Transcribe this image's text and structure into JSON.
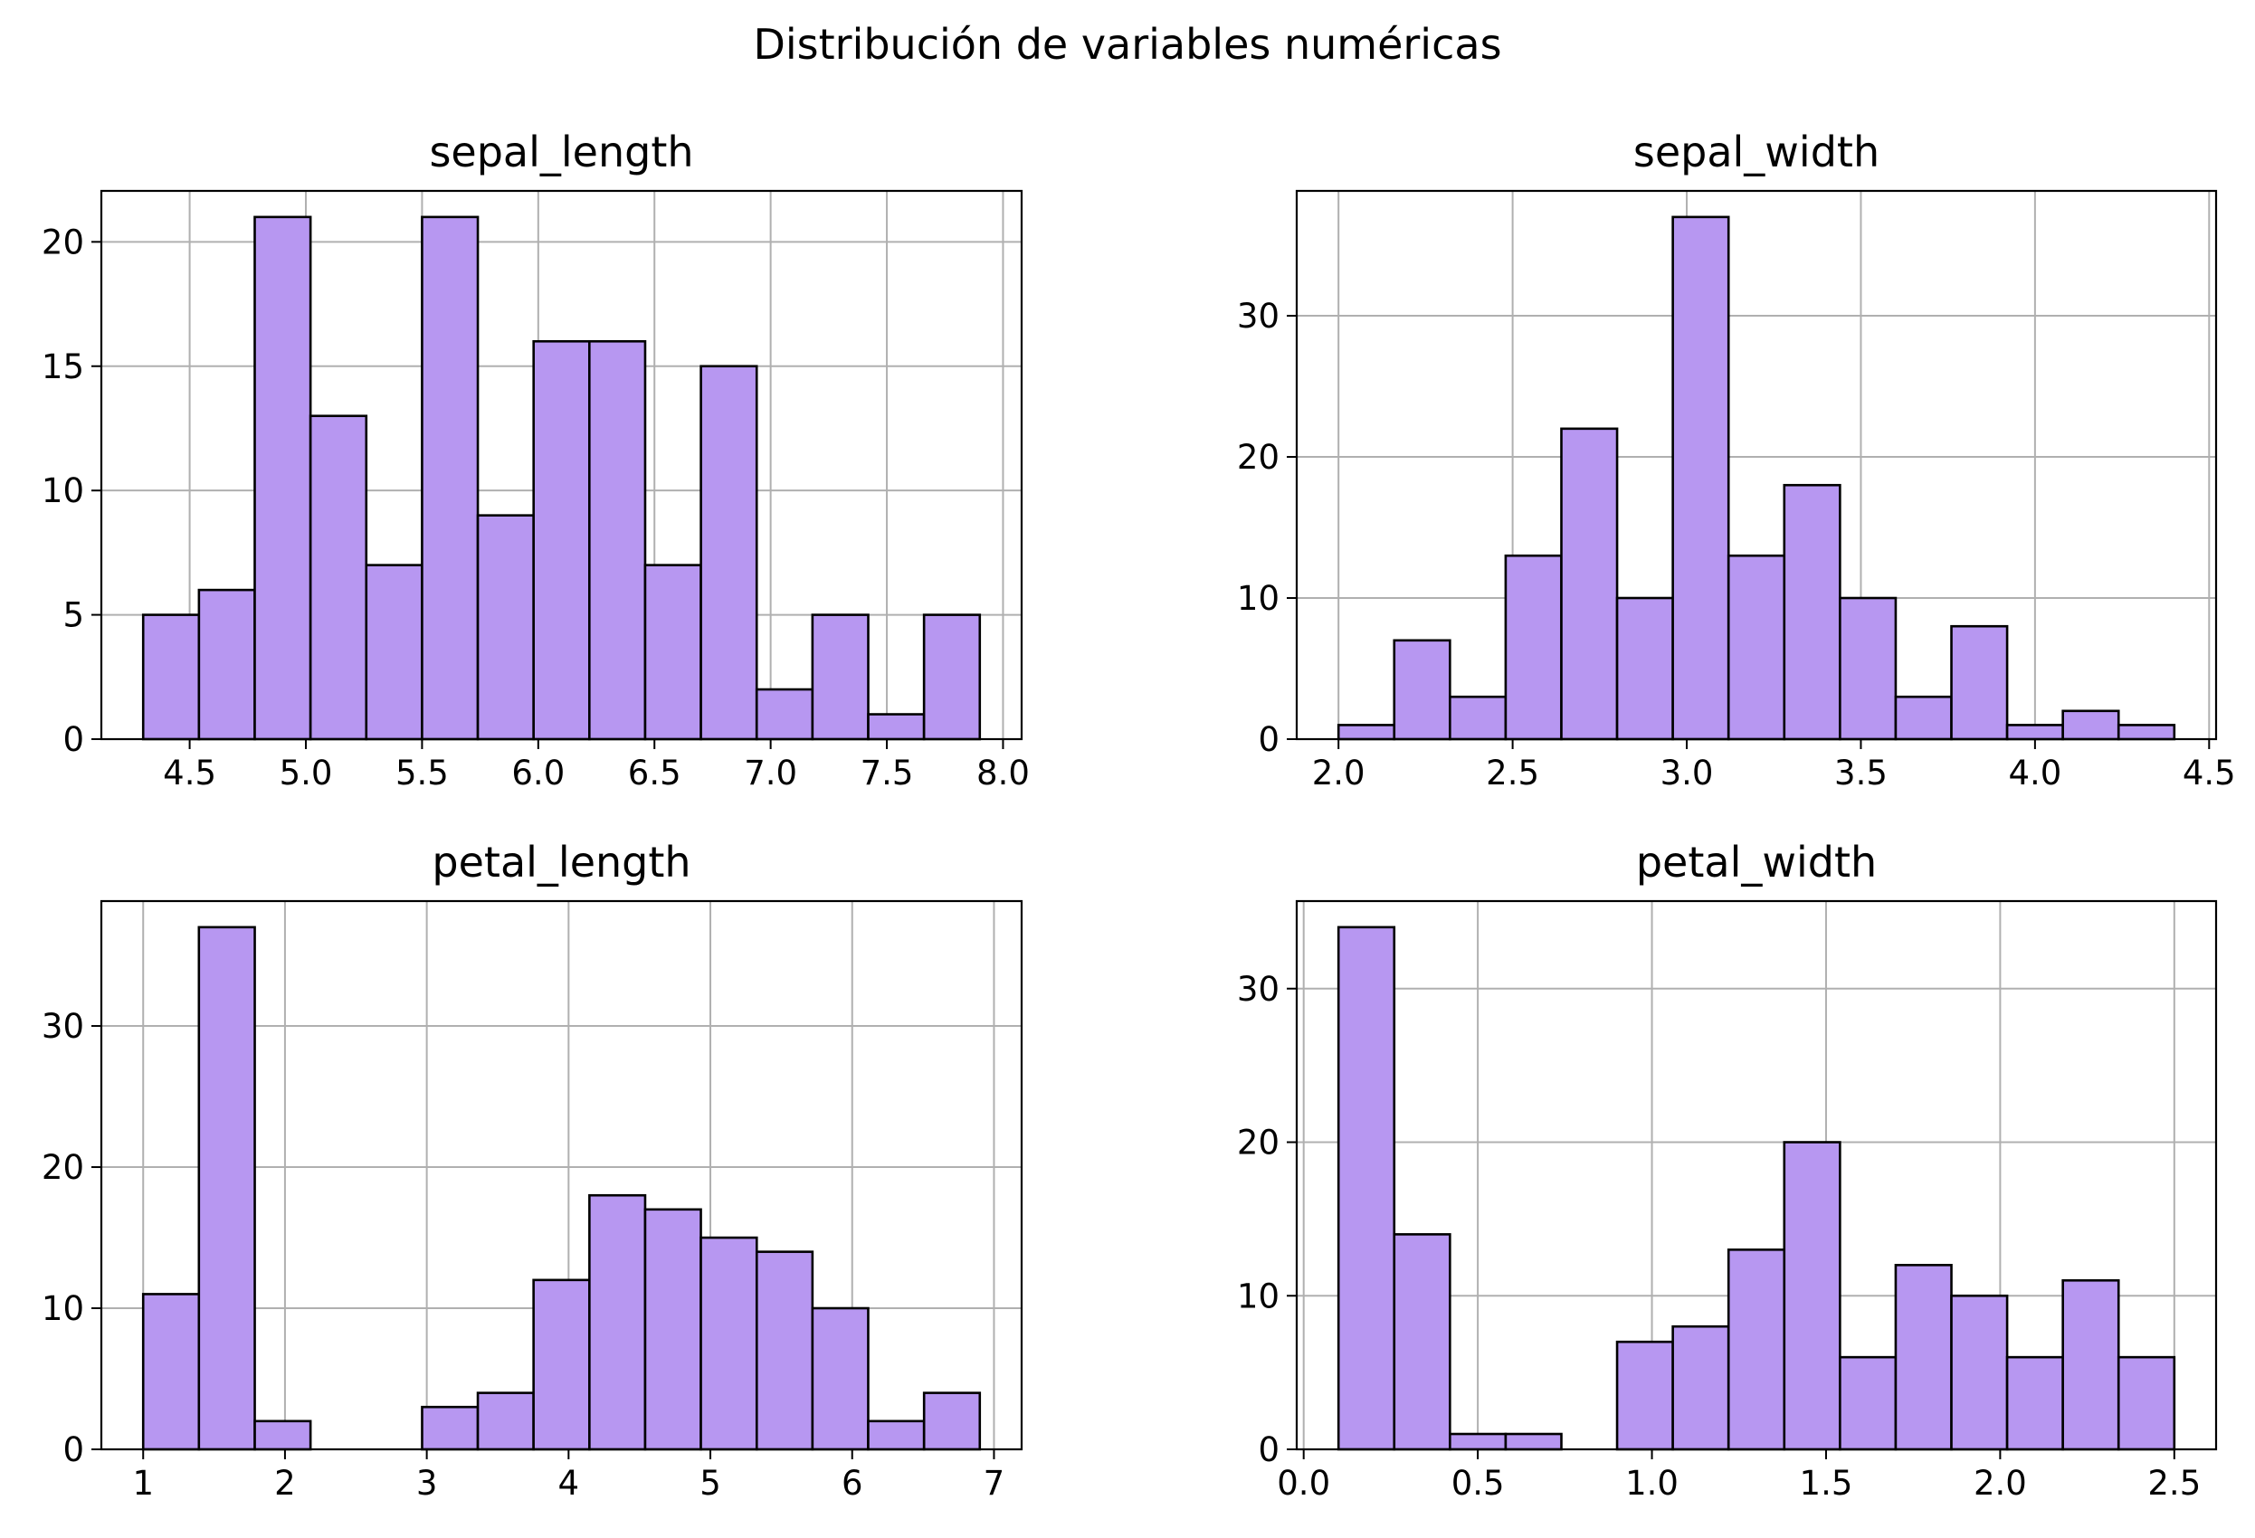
{
  "figure": {
    "title": "Distribución de variables numéricas"
  },
  "style": {
    "bar_color": "#B797F1",
    "edge_color": "#000000",
    "grid_color": "#B0B0B0"
  },
  "chart_data": [
    {
      "type": "bar",
      "title": "sepal_length",
      "xlabel": "",
      "ylabel": "",
      "bin_edges": [
        4.3,
        4.54,
        4.78,
        5.02,
        5.26,
        5.5,
        5.74,
        5.98,
        6.22,
        6.46,
        6.7,
        6.94,
        7.18,
        7.42,
        7.66,
        7.9
      ],
      "values": [
        5,
        6,
        21,
        13,
        7,
        21,
        9,
        16,
        16,
        7,
        15,
        2,
        5,
        1,
        5
      ],
      "xlim": [
        4.12,
        8.08
      ],
      "ylim": [
        0,
        22.05
      ],
      "xticks": [
        4.5,
        5.0,
        5.5,
        6.0,
        6.5,
        7.0,
        7.5,
        8.0
      ],
      "xtick_labels": [
        "4.5",
        "5.0",
        "5.5",
        "6.0",
        "6.5",
        "7.0",
        "7.5",
        "8.0"
      ],
      "yticks": [
        0,
        5,
        10,
        15,
        20
      ],
      "ytick_labels": [
        "0",
        "5",
        "10",
        "15",
        "20"
      ],
      "grid": true,
      "legend": "none"
    },
    {
      "type": "bar",
      "title": "sepal_width",
      "xlabel": "",
      "ylabel": "",
      "bin_edges": [
        2.0,
        2.16,
        2.32,
        2.48,
        2.64,
        2.8,
        2.96,
        3.12,
        3.28,
        3.44,
        3.6,
        3.76,
        3.92,
        4.08,
        4.24,
        4.4
      ],
      "values": [
        1,
        7,
        3,
        13,
        22,
        10,
        37,
        13,
        18,
        10,
        3,
        8,
        1,
        2,
        1
      ],
      "xlim": [
        1.88,
        4.52
      ],
      "ylim": [
        0,
        38.85
      ],
      "xticks": [
        2.0,
        2.5,
        3.0,
        3.5,
        4.0,
        4.5
      ],
      "xtick_labels": [
        "2.0",
        "2.5",
        "3.0",
        "3.5",
        "4.0",
        "4.5"
      ],
      "yticks": [
        0,
        10,
        20,
        30
      ],
      "ytick_labels": [
        "0",
        "10",
        "20",
        "30"
      ],
      "grid": true,
      "legend": "none"
    },
    {
      "type": "bar",
      "title": "petal_length",
      "xlabel": "",
      "ylabel": "",
      "bin_edges": [
        1.0,
        1.393,
        1.787,
        2.18,
        2.573,
        2.967,
        3.36,
        3.753,
        4.147,
        4.54,
        4.933,
        5.327,
        5.72,
        6.113,
        6.507,
        6.9
      ],
      "values": [
        11,
        37,
        2,
        0,
        0,
        3,
        4,
        12,
        18,
        17,
        15,
        14,
        10,
        2,
        4
      ],
      "xlim": [
        0.705,
        7.195
      ],
      "ylim": [
        0,
        38.85
      ],
      "xticks": [
        1,
        2,
        3,
        4,
        5,
        6,
        7
      ],
      "xtick_labels": [
        "1",
        "2",
        "3",
        "4",
        "5",
        "6",
        "7"
      ],
      "yticks": [
        0,
        10,
        20,
        30
      ],
      "ytick_labels": [
        "0",
        "10",
        "20",
        "30"
      ],
      "grid": true,
      "legend": "none"
    },
    {
      "type": "bar",
      "title": "petal_width",
      "xlabel": "",
      "ylabel": "",
      "bin_edges": [
        0.1,
        0.26,
        0.42,
        0.58,
        0.74,
        0.9,
        1.06,
        1.22,
        1.38,
        1.54,
        1.7,
        1.86,
        2.02,
        2.18,
        2.34,
        2.5
      ],
      "values": [
        34,
        14,
        1,
        1,
        0,
        7,
        8,
        13,
        20,
        6,
        12,
        10,
        6,
        11,
        6
      ],
      "xlim": [
        -0.02,
        2.62
      ],
      "ylim": [
        0,
        35.7
      ],
      "xticks": [
        0.0,
        0.5,
        1.0,
        1.5,
        2.0,
        2.5
      ],
      "xtick_labels": [
        "0.0",
        "0.5",
        "1.0",
        "1.5",
        "2.0",
        "2.5"
      ],
      "yticks": [
        0,
        10,
        20,
        30
      ],
      "ytick_labels": [
        "0",
        "10",
        "20",
        "30"
      ],
      "grid": true,
      "legend": "none"
    }
  ]
}
